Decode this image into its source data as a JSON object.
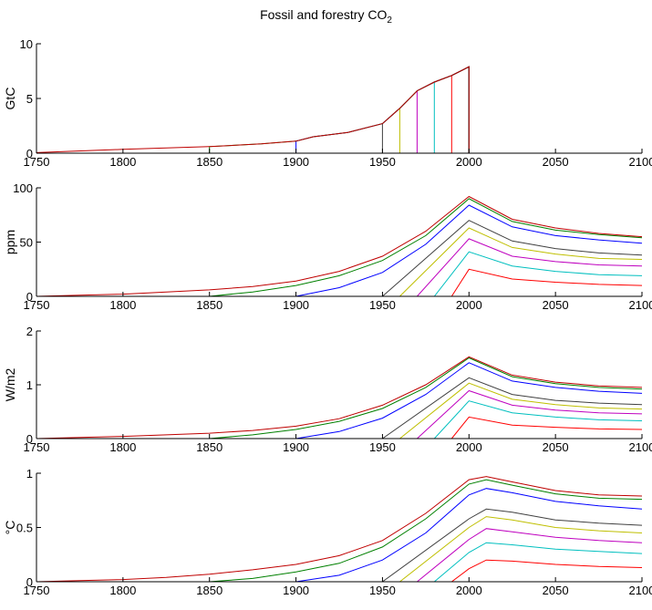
{
  "figure": {
    "title_main": "Fossil and forestry CO",
    "title_sub": "2"
  },
  "series_colors": [
    "#ff0000",
    "#00bfbf",
    "#bf00bf",
    "#bfbf00",
    "#404040",
    "#0000ff",
    "#008000",
    "#bf0000"
  ],
  "series_starts": [
    1990,
    1980,
    1970,
    1960,
    1950,
    1900,
    1850,
    1750
  ],
  "chart_data": [
    {
      "type": "line",
      "title": "Fossil and forestry CO2",
      "ylabel": "GtC",
      "xlim": [
        1750,
        2100
      ],
      "ylim": [
        0,
        10
      ],
      "xticks": [
        1750,
        1800,
        1850,
        1900,
        1950,
        2000,
        2050,
        2100
      ],
      "yticks": [
        0,
        5,
        10
      ],
      "grid": false,
      "envelope": {
        "x": [
          1750,
          1800,
          1850,
          1880,
          1900,
          1910,
          1930,
          1950,
          1960,
          1970,
          1980,
          1990,
          2000
        ],
        "y": [
          0.05,
          0.35,
          0.6,
          0.85,
          1.1,
          1.5,
          1.9,
          2.7,
          4.1,
          5.7,
          6.5,
          7.1,
          7.9
        ]
      },
      "series": [
        {
          "start": 1990,
          "end": 2000
        },
        {
          "start": 1980,
          "end": 2000
        },
        {
          "start": 1970,
          "end": 2000
        },
        {
          "start": 1960,
          "end": 2000
        },
        {
          "start": 1950,
          "end": 2000
        },
        {
          "start": 1900,
          "end": 2000
        },
        {
          "start": 1850,
          "end": 2000
        },
        {
          "start": 1750,
          "end": 2000
        }
      ]
    },
    {
      "type": "line",
      "ylabel": "ppm",
      "xlim": [
        1750,
        2100
      ],
      "ylim": [
        0,
        100
      ],
      "xticks": [
        1750,
        1800,
        1850,
        1900,
        1950,
        2000,
        2050,
        2100
      ],
      "yticks": [
        0,
        50,
        100
      ],
      "grid": false,
      "series": [
        {
          "start": 1990,
          "x": [
            1990,
            2000,
            2025,
            2050,
            2075,
            2100
          ],
          "y": [
            0,
            25,
            16,
            13,
            11,
            10
          ]
        },
        {
          "start": 1980,
          "x": [
            1980,
            2000,
            2025,
            2050,
            2075,
            2100
          ],
          "y": [
            0,
            41,
            28,
            23,
            20,
            19
          ]
        },
        {
          "start": 1970,
          "x": [
            1970,
            2000,
            2025,
            2050,
            2075,
            2100
          ],
          "y": [
            0,
            53,
            37,
            32,
            29,
            28
          ]
        },
        {
          "start": 1960,
          "x": [
            1960,
            2000,
            2025,
            2050,
            2075,
            2100
          ],
          "y": [
            0,
            63,
            45,
            39,
            35,
            34
          ]
        },
        {
          "start": 1950,
          "x": [
            1950,
            2000,
            2025,
            2050,
            2075,
            2100
          ],
          "y": [
            0,
            70,
            51,
            44,
            40,
            38
          ]
        },
        {
          "start": 1900,
          "x": [
            1900,
            1925,
            1950,
            1975,
            2000,
            2025,
            2050,
            2075,
            2100
          ],
          "y": [
            0,
            8,
            22,
            48,
            84,
            64,
            56,
            52,
            49
          ]
        },
        {
          "start": 1850,
          "x": [
            1850,
            1875,
            1900,
            1925,
            1950,
            1975,
            2000,
            2025,
            2050,
            2075,
            2100
          ],
          "y": [
            0,
            4,
            10,
            19,
            33,
            56,
            90,
            69,
            61,
            57,
            54
          ]
        },
        {
          "start": 1750,
          "x": [
            1750,
            1775,
            1800,
            1825,
            1850,
            1875,
            1900,
            1925,
            1950,
            1975,
            2000,
            2025,
            2050,
            2075,
            2100
          ],
          "y": [
            0,
            1,
            2,
            4,
            6,
            9,
            14,
            23,
            37,
            60,
            92,
            71,
            63,
            58,
            55
          ]
        }
      ]
    },
    {
      "type": "line",
      "ylabel": "W/m2",
      "xlim": [
        1750,
        2100
      ],
      "ylim": [
        0,
        2
      ],
      "xticks": [
        1750,
        1800,
        1850,
        1900,
        1950,
        2000,
        2050,
        2100
      ],
      "yticks": [
        0,
        1,
        2
      ],
      "grid": false,
      "series": [
        {
          "start": 1990,
          "x": [
            1990,
            2000,
            2025,
            2050,
            2075,
            2100
          ],
          "y": [
            0,
            0.4,
            0.25,
            0.21,
            0.18,
            0.17
          ]
        },
        {
          "start": 1980,
          "x": [
            1980,
            2000,
            2025,
            2050,
            2075,
            2100
          ],
          "y": [
            0,
            0.7,
            0.48,
            0.4,
            0.35,
            0.33
          ]
        },
        {
          "start": 1970,
          "x": [
            1970,
            2000,
            2025,
            2050,
            2075,
            2100
          ],
          "y": [
            0,
            0.89,
            0.62,
            0.53,
            0.48,
            0.46
          ]
        },
        {
          "start": 1960,
          "x": [
            1960,
            2000,
            2025,
            2050,
            2075,
            2100
          ],
          "y": [
            0,
            1.03,
            0.73,
            0.63,
            0.57,
            0.55
          ]
        },
        {
          "start": 1950,
          "x": [
            1950,
            2000,
            2025,
            2050,
            2075,
            2100
          ],
          "y": [
            0,
            1.13,
            0.82,
            0.71,
            0.66,
            0.63
          ]
        },
        {
          "start": 1900,
          "x": [
            1900,
            1925,
            1950,
            1975,
            2000,
            2025,
            2050,
            2075,
            2100
          ],
          "y": [
            0,
            0.13,
            0.38,
            0.82,
            1.41,
            1.07,
            0.95,
            0.88,
            0.84
          ]
        },
        {
          "start": 1850,
          "x": [
            1850,
            1875,
            1900,
            1925,
            1950,
            1975,
            2000,
            2025,
            2050,
            2075,
            2100
          ],
          "y": [
            0,
            0.07,
            0.17,
            0.32,
            0.56,
            0.95,
            1.5,
            1.15,
            1.02,
            0.95,
            0.92
          ]
        },
        {
          "start": 1750,
          "x": [
            1750,
            1775,
            1800,
            1825,
            1850,
            1875,
            1900,
            1925,
            1950,
            1975,
            2000,
            2025,
            2050,
            2075,
            2100
          ],
          "y": [
            0,
            0.02,
            0.04,
            0.07,
            0.1,
            0.15,
            0.23,
            0.37,
            0.62,
            1.0,
            1.52,
            1.18,
            1.05,
            0.98,
            0.95
          ]
        }
      ]
    },
    {
      "type": "line",
      "ylabel": "°C",
      "xlim": [
        1750,
        2100
      ],
      "ylim": [
        0,
        1
      ],
      "xticks": [
        1750,
        1800,
        1850,
        1900,
        1950,
        2000,
        2050,
        2100
      ],
      "yticks": [
        0,
        0.5,
        1
      ],
      "grid": false,
      "series": [
        {
          "start": 1990,
          "x": [
            1990,
            2000,
            2010,
            2025,
            2050,
            2075,
            2100
          ],
          "y": [
            0,
            0.12,
            0.2,
            0.19,
            0.16,
            0.14,
            0.13
          ]
        },
        {
          "start": 1980,
          "x": [
            1980,
            2000,
            2010,
            2025,
            2050,
            2075,
            2100
          ],
          "y": [
            0,
            0.27,
            0.36,
            0.34,
            0.3,
            0.28,
            0.26
          ]
        },
        {
          "start": 1970,
          "x": [
            1970,
            2000,
            2010,
            2025,
            2050,
            2075,
            2100
          ],
          "y": [
            0,
            0.39,
            0.49,
            0.46,
            0.41,
            0.38,
            0.36
          ]
        },
        {
          "start": 1960,
          "x": [
            1960,
            2000,
            2010,
            2025,
            2050,
            2075,
            2100
          ],
          "y": [
            0,
            0.5,
            0.6,
            0.57,
            0.5,
            0.47,
            0.45
          ]
        },
        {
          "start": 1950,
          "x": [
            1950,
            2000,
            2010,
            2025,
            2050,
            2075,
            2100
          ],
          "y": [
            0,
            0.58,
            0.67,
            0.64,
            0.57,
            0.54,
            0.52
          ]
        },
        {
          "start": 1900,
          "x": [
            1900,
            1925,
            1950,
            1975,
            2000,
            2010,
            2025,
            2050,
            2075,
            2100
          ],
          "y": [
            0,
            0.06,
            0.2,
            0.45,
            0.8,
            0.86,
            0.82,
            0.74,
            0.7,
            0.67
          ]
        },
        {
          "start": 1850,
          "x": [
            1850,
            1875,
            1900,
            1925,
            1950,
            1975,
            2000,
            2010,
            2025,
            2050,
            2075,
            2100
          ],
          "y": [
            0,
            0.03,
            0.09,
            0.17,
            0.32,
            0.58,
            0.9,
            0.94,
            0.89,
            0.81,
            0.77,
            0.76
          ]
        },
        {
          "start": 1750,
          "x": [
            1750,
            1775,
            1800,
            1825,
            1850,
            1875,
            1900,
            1925,
            1950,
            1975,
            2000,
            2010,
            2025,
            2050,
            2075,
            2100
          ],
          "y": [
            0,
            0.01,
            0.02,
            0.04,
            0.07,
            0.11,
            0.16,
            0.24,
            0.38,
            0.63,
            0.94,
            0.97,
            0.92,
            0.84,
            0.8,
            0.79
          ]
        }
      ]
    }
  ]
}
